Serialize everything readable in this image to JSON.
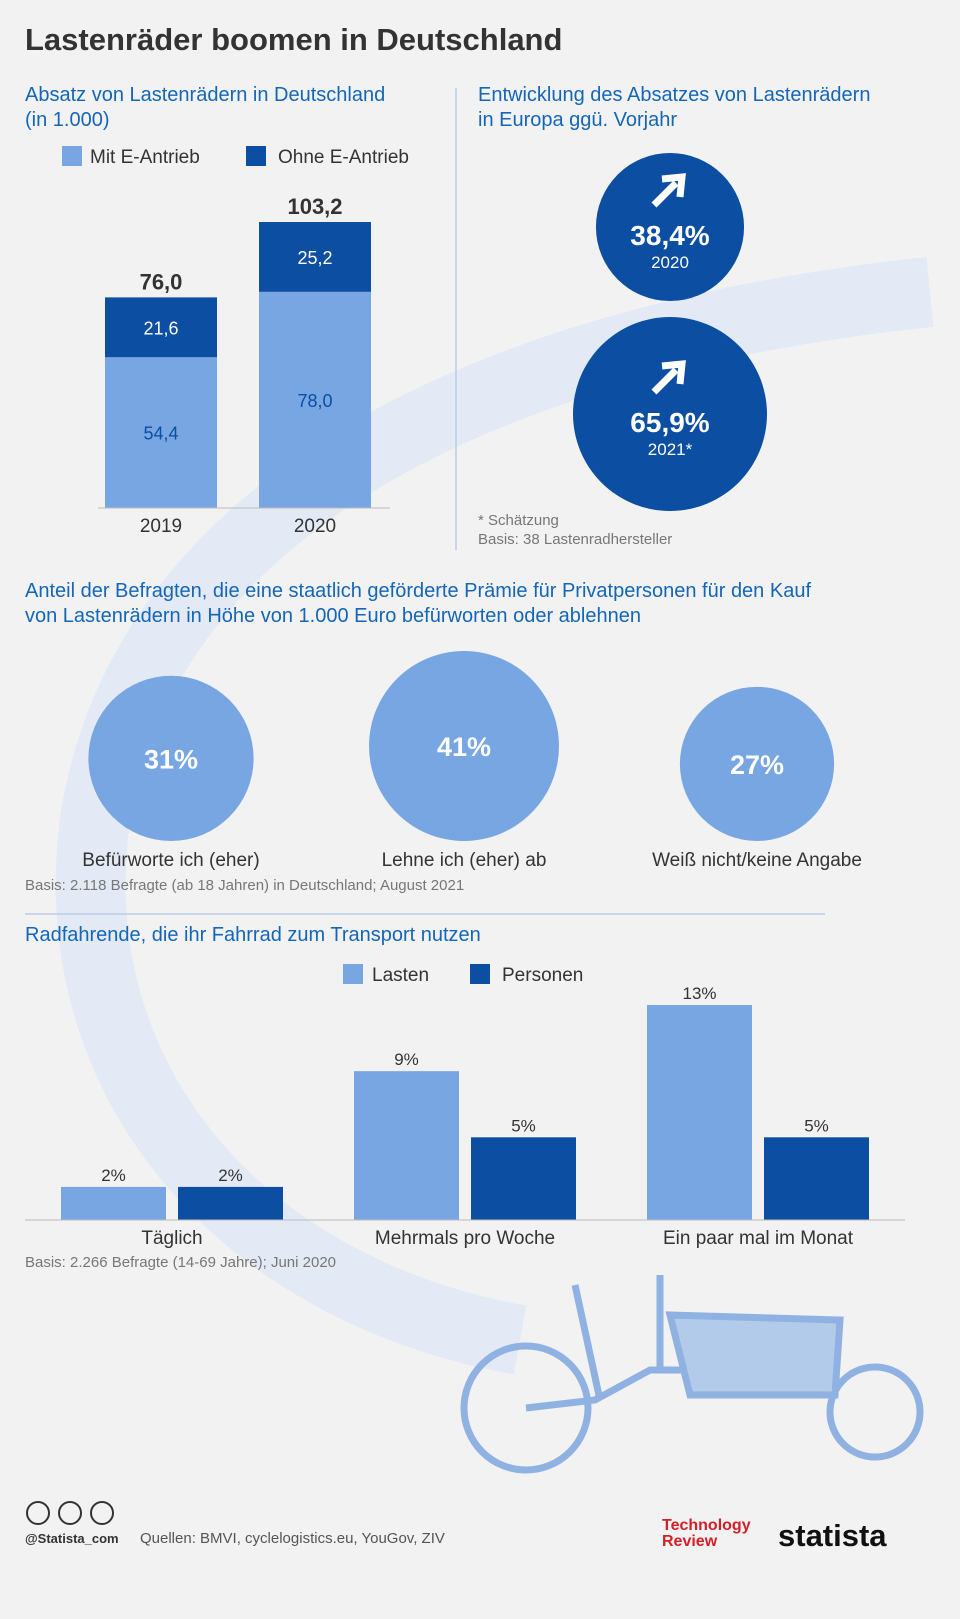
{
  "title": "Lastenräder boomen in Deutschland",
  "chart_data": [
    {
      "type": "stacked_bar",
      "title": [
        "Absatz von Lastenrädern in Deutschland",
        "(in 1.000)"
      ],
      "categories": [
        "2019",
        "2020"
      ],
      "series": [
        {
          "name": "Mit E-Antrieb",
          "color": "#77a6e3",
          "values": [
            54.4,
            78.0
          ],
          "value_labels": [
            "54,4",
            "78,0"
          ]
        },
        {
          "name": "Ohne E-Antrieb",
          "color": "#0b4ea2",
          "values": [
            21.6,
            25.2
          ],
          "value_labels": [
            "21,6",
            "25,2"
          ]
        }
      ],
      "totals": [
        76.0,
        103.2
      ],
      "total_labels": [
        "76,0",
        "103,2"
      ]
    },
    {
      "type": "bubble",
      "title": [
        "Entwicklung des Absatzes von Lastenrädern",
        "in Europa ggü. Vorjahr"
      ],
      "categories": [
        "2020",
        "2021*"
      ],
      "values": [
        38.4,
        65.9
      ],
      "value_labels": [
        "38,4%",
        "65,9%"
      ],
      "color": "#0b4ea2",
      "notes": [
        "* Schätzung",
        "Basis: 38 Lastenradhersteller"
      ]
    },
    {
      "type": "bubble",
      "title": [
        "Anteil der Befragten, die eine staatlich geförderte Prämie für Privatpersonen für den Kauf",
        "von Lastenrädern in Höhe von 1.000 Euro befürworten oder ablehnen"
      ],
      "categories": [
        "Befürworte ich (eher)",
        "Lehne ich (eher) ab",
        "Weiß nicht/keine Angabe"
      ],
      "values": [
        31,
        41,
        27
      ],
      "value_labels": [
        "31%",
        "41%",
        "27%"
      ],
      "color": "#77a6e3",
      "notes": [
        "Basis: 2.118 Befragte (ab 18 Jahren) in Deutschland; August 2021"
      ]
    },
    {
      "type": "grouped_bar",
      "title": [
        "Radfahrende, die ihr Fahrrad zum Transport nutzen"
      ],
      "categories": [
        "Täglich",
        "Mehrmals pro Woche",
        "Ein paar mal im Monat"
      ],
      "series": [
        {
          "name": "Lasten",
          "color": "#77a6e3",
          "values": [
            2,
            9,
            13
          ],
          "value_labels": [
            "2%",
            "9%",
            "13%"
          ]
        },
        {
          "name": "Personen",
          "color": "#0b4ea2",
          "values": [
            2,
            5,
            5
          ],
          "value_labels": [
            "2%",
            "5%",
            "5%"
          ]
        }
      ],
      "notes": [
        "Basis: 2.266 Befragte (14-69 Jahre); Juni 2020"
      ]
    }
  ],
  "footer": {
    "handle": "@Statista_com",
    "sources": "Quellen: BMVI, cyclelogistics.eu, YouGov, ZIV",
    "partner_logo": [
      "Technology",
      "Review"
    ],
    "logo": "statista"
  }
}
